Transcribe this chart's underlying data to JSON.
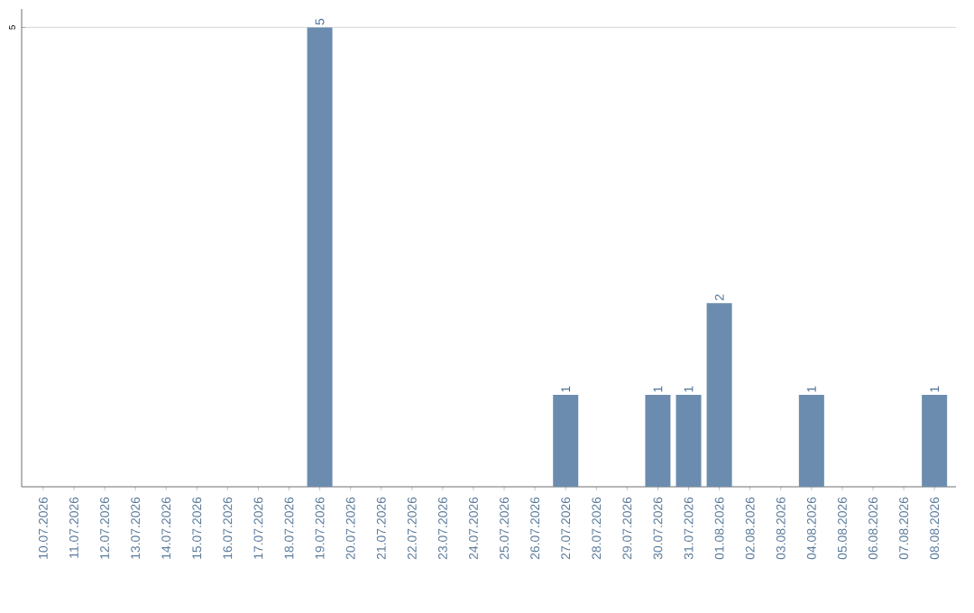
{
  "chart_data": {
    "type": "bar",
    "categories": [
      "10.07.2026",
      "11.07.2026",
      "12.07.2026",
      "13.07.2026",
      "14.07.2026",
      "15.07.2026",
      "16.07.2026",
      "17.07.2026",
      "18.07.2026",
      "19.07.2026",
      "20.07.2026",
      "21.07.2026",
      "22.07.2026",
      "23.07.2026",
      "24.07.2026",
      "25.07.2026",
      "26.07.2026",
      "27.07.2026",
      "28.07.2026",
      "29.07.2026",
      "30.07.2026",
      "31.07.2026",
      "01.08.2026",
      "02.08.2026",
      "03.08.2026",
      "04.08.2026",
      "05.08.2026",
      "06.08.2026",
      "07.08.2026",
      "08.08.2026"
    ],
    "values": [
      null,
      null,
      null,
      null,
      null,
      null,
      null,
      null,
      null,
      5,
      null,
      null,
      null,
      null,
      null,
      null,
      null,
      1,
      null,
      null,
      1,
      1,
      2,
      null,
      null,
      1,
      null,
      null,
      null,
      1
    ],
    "color": "#6b8cae",
    "ylim": [
      0,
      5.2
    ],
    "yticks": [
      5
    ],
    "grid": "y",
    "data_labels": true
  }
}
